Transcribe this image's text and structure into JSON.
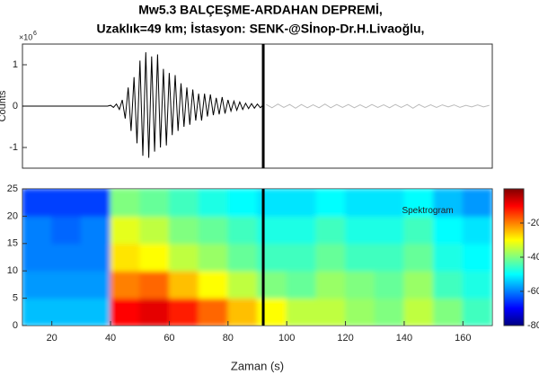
{
  "chart_data": [
    {
      "type": "line",
      "title": "Mw5.3 BALÇEŞME-ARDAHAN DEPREMİ,",
      "subtitle": "Uzaklık=49 km; İstasyon: SENK-@Sİnop-Dr.H.Livaoğlu,",
      "ylabel": "Counts",
      "y_scale_label": "×10",
      "y_scale_power": "6",
      "xlim": [
        10,
        170
      ],
      "ylim": [
        -1.5,
        1.5
      ],
      "yticks": [
        -1,
        0,
        1
      ],
      "vline": 92,
      "series": [
        {
          "color": "#000000",
          "x": [
            10,
            20,
            30,
            39,
            40,
            41,
            42,
            43,
            44,
            45,
            46,
            47,
            48,
            49,
            50,
            51,
            52,
            53,
            54,
            55,
            56,
            57,
            58,
            59,
            60,
            61,
            62,
            63,
            64,
            65,
            66,
            67,
            68,
            69,
            70,
            71,
            72,
            73,
            74,
            75,
            76,
            77,
            78,
            79,
            80,
            81,
            82,
            83,
            84,
            85,
            86,
            87,
            88,
            89,
            90,
            91,
            92
          ],
          "values": [
            0,
            0,
            0,
            0,
            0.02,
            -0.03,
            0.05,
            -0.08,
            0.15,
            -0.3,
            0.45,
            -0.6,
            0.7,
            -0.9,
            1.1,
            -1.2,
            1.3,
            -1.25,
            1.2,
            -1.1,
            1.25,
            -1.0,
            0.9,
            -0.95,
            0.8,
            -0.7,
            0.75,
            -0.6,
            0.55,
            -0.5,
            0.45,
            -0.45,
            0.4,
            -0.35,
            0.3,
            -0.35,
            0.3,
            -0.25,
            0.28,
            -0.22,
            0.2,
            -0.2,
            0.22,
            -0.18,
            0.15,
            -0.12,
            0.12,
            -0.1,
            0.1,
            -0.08,
            0.07,
            -0.06,
            0.06,
            -0.05,
            0.05,
            -0.04,
            0.03
          ]
        },
        {
          "color": "#bbbbbb",
          "x": [
            93,
            95,
            97,
            99,
            101,
            103,
            105,
            107,
            109,
            111,
            113,
            115,
            117,
            119,
            121,
            123,
            125,
            127,
            129,
            131,
            133,
            135,
            137,
            139,
            141,
            143,
            145,
            147,
            149,
            151,
            153,
            155,
            157,
            159,
            161,
            163,
            165,
            167,
            169
          ],
          "values": [
            0.04,
            -0.04,
            0.05,
            -0.03,
            0.04,
            -0.05,
            0.04,
            -0.04,
            0.03,
            -0.04,
            0.05,
            -0.04,
            0.04,
            -0.03,
            0.04,
            -0.04,
            0.03,
            -0.04,
            0.04,
            -0.03,
            0.03,
            -0.04,
            0.04,
            -0.03,
            0.04,
            -0.05,
            0.04,
            -0.03,
            0.03,
            -0.03,
            0.03,
            -0.02,
            0.03,
            -0.03,
            0.02,
            -0.02,
            0.03,
            -0.02,
            0.02
          ]
        }
      ]
    },
    {
      "type": "heatmap",
      "annotation": "Spektrogram",
      "xlabel": "Zaman (s)",
      "xlim": [
        10,
        170
      ],
      "ylim": [
        0,
        25
      ],
      "xticks": [
        20,
        40,
        60,
        80,
        100,
        120,
        140,
        160
      ],
      "yticks": [
        0,
        5,
        10,
        15,
        20,
        25
      ],
      "clim": [
        -80,
        0
      ],
      "cticks": [
        -80,
        -60,
        -40,
        -20
      ],
      "vline": 92,
      "x_bins": [
        10,
        20,
        30,
        40,
        50,
        60,
        70,
        80,
        90,
        100,
        110,
        120,
        130,
        140,
        150,
        160,
        170
      ],
      "y_bins": [
        0,
        5,
        10,
        15,
        20,
        25
      ],
      "z": [
        [
          -55,
          -55,
          -55,
          -10,
          -8,
          -12,
          -18,
          -25,
          -30,
          -35,
          -35,
          -38,
          -40,
          -35,
          -40,
          -45
        ],
        [
          -58,
          -58,
          -58,
          -20,
          -18,
          -25,
          -30,
          -35,
          -40,
          -42,
          -38,
          -40,
          -42,
          -38,
          -45,
          -48
        ],
        [
          -60,
          -60,
          -60,
          -28,
          -30,
          -35,
          -38,
          -42,
          -45,
          -45,
          -42,
          -45,
          -45,
          -42,
          -48,
          -50
        ],
        [
          -60,
          -62,
          -60,
          -32,
          -35,
          -40,
          -42,
          -45,
          -48,
          -48,
          -45,
          -48,
          -48,
          -45,
          -50,
          -52
        ],
        [
          -65,
          -65,
          -65,
          -40,
          -42,
          -45,
          -48,
          -50,
          -52,
          -52,
          -50,
          -52,
          -52,
          -50,
          -55,
          -58
        ]
      ]
    }
  ]
}
